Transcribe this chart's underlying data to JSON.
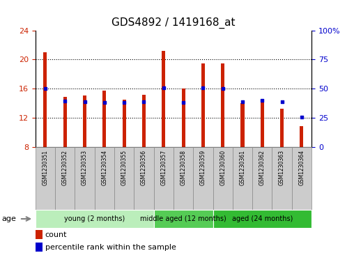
{
  "title": "GDS4892 / 1419168_at",
  "samples": [
    "GSM1230351",
    "GSM1230352",
    "GSM1230353",
    "GSM1230354",
    "GSM1230355",
    "GSM1230356",
    "GSM1230357",
    "GSM1230358",
    "GSM1230359",
    "GSM1230360",
    "GSM1230361",
    "GSM1230362",
    "GSM1230363",
    "GSM1230364"
  ],
  "count_values": [
    21.0,
    14.9,
    15.0,
    15.7,
    14.5,
    15.1,
    21.2,
    16.0,
    19.5,
    19.5,
    14.0,
    14.2,
    13.2,
    10.8
  ],
  "percentile_values": [
    16.0,
    14.3,
    14.2,
    14.1,
    14.1,
    14.2,
    16.1,
    14.1,
    16.1,
    16.0,
    14.2,
    14.4,
    14.2,
    12.1
  ],
  "ymin": 8,
  "ymax": 24,
  "yticks": [
    8,
    12,
    16,
    20,
    24
  ],
  "y2min": 0,
  "y2max": 100,
  "y2ticks": [
    0,
    25,
    50,
    75,
    100
  ],
  "y2ticklabels": [
    "0",
    "25",
    "50",
    "75",
    "100%"
  ],
  "bar_color": "#cc2200",
  "percentile_color": "#0000cc",
  "background_color": "#ffffff",
  "groups": [
    {
      "label": "young (2 months)",
      "start": 0,
      "end": 6,
      "color": "#bbeebb"
    },
    {
      "label": "middle aged (12 months)",
      "start": 6,
      "end": 9,
      "color": "#55cc55"
    },
    {
      "label": "aged (24 months)",
      "start": 9,
      "end": 14,
      "color": "#33bb33"
    }
  ],
  "age_label": "age",
  "legend_count_label": "count",
  "legend_percentile_label": "percentile rank within the sample",
  "title_fontsize": 11,
  "tick_fontsize": 8,
  "bar_width": 0.18,
  "sample_box_color": "#cccccc",
  "sample_box_edge": "#888888"
}
